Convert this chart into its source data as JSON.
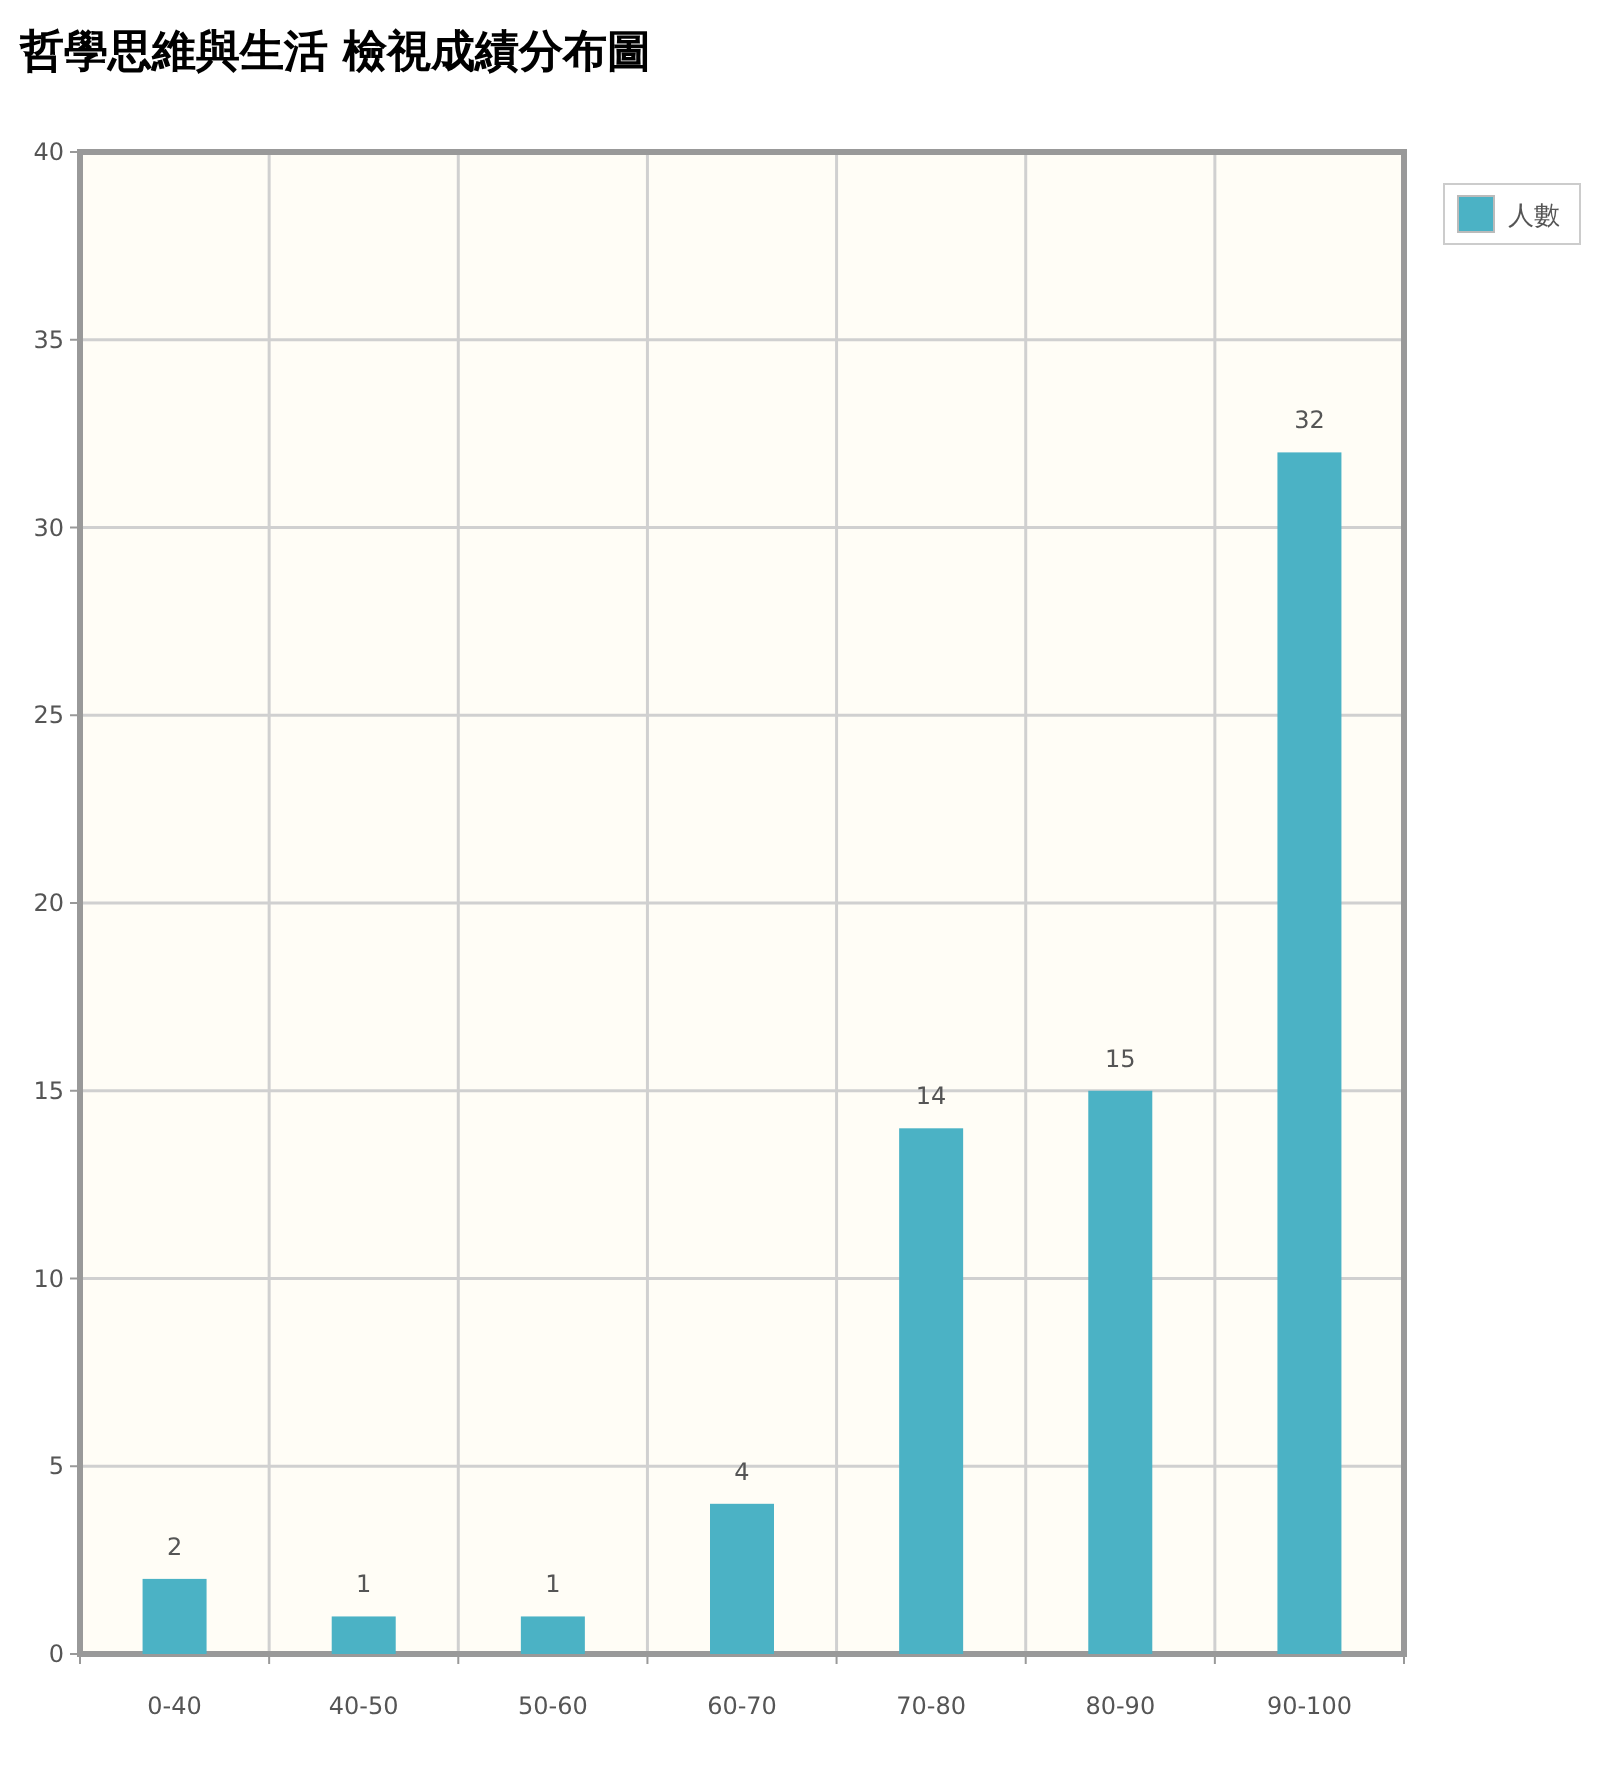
{
  "chart_data": {
    "type": "bar",
    "title": "哲學思維與生活 檢視成績分布圖",
    "categories": [
      "0-40",
      "40-50",
      "50-60",
      "60-70",
      "70-80",
      "80-90",
      "90-100"
    ],
    "series": [
      {
        "name": "人數",
        "color": "#4bb2c5",
        "values": [
          2,
          1,
          1,
          4,
          14,
          15,
          32
        ]
      }
    ],
    "ylim": [
      0,
      40
    ],
    "yticks": [
      0,
      5,
      10,
      15,
      20,
      25,
      30,
      35,
      40
    ],
    "grid": true,
    "legend": "top right",
    "data_labels": true
  }
}
